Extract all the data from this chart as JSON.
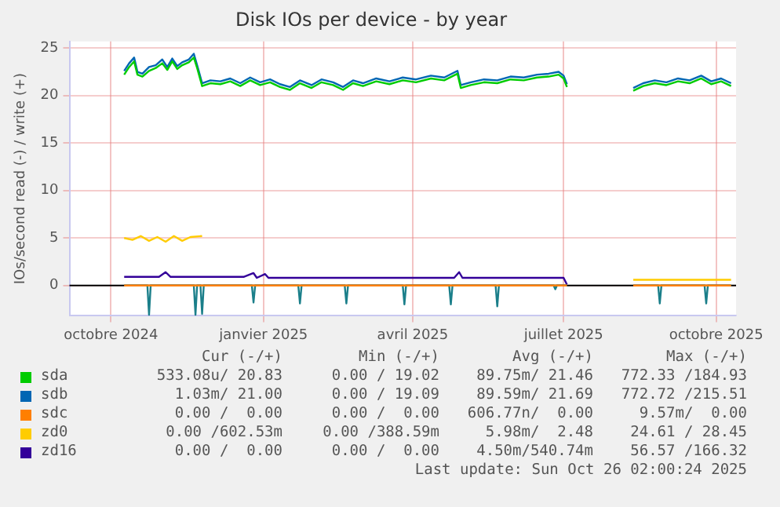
{
  "chart_data": {
    "type": "line",
    "title": "Disk IOs per device - by year",
    "ylabel": "IOs/second read (-) / write (+)",
    "xlim": [
      "2024-09-06",
      "2025-10-13"
    ],
    "xticks": [
      {
        "value": "2024-10-01",
        "label": "octobre 2024"
      },
      {
        "value": "2025-01-01",
        "label": "janvier 2025"
      },
      {
        "value": "2025-04-01",
        "label": "avril 2025"
      },
      {
        "value": "2025-07-01",
        "label": "juillet 2025"
      },
      {
        "value": "2025-10-01",
        "label": "octobre 2025"
      }
    ],
    "ylim": [
      -3.2,
      25.7
    ],
    "yticks": [
      0,
      5,
      10,
      15,
      20,
      25
    ],
    "grid": true,
    "legend": "bottom",
    "ref_lines": [
      {
        "axis": "y",
        "value": 0,
        "color": "#000000"
      }
    ],
    "series": [
      {
        "name": "sda",
        "color": "#00cc00",
        "x": [
          "2024-10-09",
          "2024-10-12",
          "2024-10-15",
          "2024-10-17",
          "2024-10-20",
          "2024-10-24",
          "2024-10-28",
          "2024-11-01",
          "2024-11-04",
          "2024-11-07",
          "2024-11-10",
          "2024-11-13",
          "2024-11-17",
          "2024-11-20",
          "2024-11-22",
          "2024-11-25",
          "2024-11-30",
          "2024-12-06",
          "2024-12-12",
          "2024-12-18",
          "2024-12-24",
          "2024-12-30",
          "2025-01-05",
          "2025-01-11",
          "2025-01-17",
          "2025-01-23",
          "2025-01-30",
          "2025-02-05",
          "2025-02-12",
          "2025-02-18",
          "2025-02-24",
          "2025-03-02",
          "2025-03-10",
          "2025-03-18",
          "2025-03-26",
          "2025-04-03",
          "2025-04-12",
          "2025-04-20",
          "2025-04-28",
          "2025-04-30",
          "2025-05-06",
          "2025-05-14",
          "2025-05-22",
          "2025-05-30",
          "2025-06-07",
          "2025-06-15",
          "2025-06-22",
          "2025-06-28",
          "2025-07-01",
          "2025-07-03",
          "2025-07-20",
          "2025-08-12",
          "2025-08-18",
          "2025-08-25",
          "2025-09-01",
          "2025-09-08",
          "2025-09-15",
          "2025-09-22",
          "2025-09-28",
          "2025-10-04",
          "2025-10-10"
        ],
        "values": [
          22.2,
          23.0,
          23.6,
          22.2,
          22.0,
          22.6,
          22.9,
          23.4,
          22.7,
          23.6,
          22.8,
          23.2,
          23.5,
          24.0,
          22.9,
          21.0,
          21.3,
          21.2,
          21.5,
          21.0,
          21.6,
          21.1,
          21.4,
          20.9,
          20.6,
          21.3,
          20.8,
          21.4,
          21.1,
          20.6,
          21.3,
          21.0,
          21.5,
          21.2,
          21.6,
          21.4,
          21.8,
          21.6,
          22.3,
          20.8,
          21.1,
          21.4,
          21.3,
          21.7,
          21.6,
          21.9,
          22.0,
          22.2,
          21.8,
          20.9,
          null,
          20.5,
          21.0,
          21.3,
          21.1,
          21.5,
          21.3,
          21.8,
          21.2,
          21.5,
          21.0
        ]
      },
      {
        "name": "sdb",
        "color": "#0066b3",
        "x": [
          "2024-10-09",
          "2024-10-12",
          "2024-10-15",
          "2024-10-17",
          "2024-10-20",
          "2024-10-24",
          "2024-10-28",
          "2024-11-01",
          "2024-11-04",
          "2024-11-07",
          "2024-11-10",
          "2024-11-13",
          "2024-11-17",
          "2024-11-20",
          "2024-11-22",
          "2024-11-25",
          "2024-11-30",
          "2024-12-06",
          "2024-12-12",
          "2024-12-18",
          "2024-12-24",
          "2024-12-30",
          "2025-01-05",
          "2025-01-11",
          "2025-01-17",
          "2025-01-23",
          "2025-01-30",
          "2025-02-05",
          "2025-02-12",
          "2025-02-18",
          "2025-02-24",
          "2025-03-02",
          "2025-03-10",
          "2025-03-18",
          "2025-03-26",
          "2025-04-03",
          "2025-04-12",
          "2025-04-20",
          "2025-04-28",
          "2025-04-30",
          "2025-05-06",
          "2025-05-14",
          "2025-05-22",
          "2025-05-30",
          "2025-06-07",
          "2025-06-15",
          "2025-06-22",
          "2025-06-28",
          "2025-07-01",
          "2025-07-03",
          "2025-07-20",
          "2025-08-12",
          "2025-08-18",
          "2025-08-25",
          "2025-09-01",
          "2025-09-08",
          "2025-09-15",
          "2025-09-22",
          "2025-09-28",
          "2025-10-04",
          "2025-10-10"
        ],
        "values": [
          22.6,
          23.4,
          24.0,
          22.5,
          22.3,
          23.0,
          23.2,
          23.8,
          23.0,
          23.9,
          23.1,
          23.5,
          23.8,
          24.4,
          23.2,
          21.3,
          21.6,
          21.5,
          21.8,
          21.3,
          21.9,
          21.4,
          21.7,
          21.2,
          20.9,
          21.6,
          21.1,
          21.7,
          21.4,
          20.9,
          21.6,
          21.3,
          21.8,
          21.5,
          21.9,
          21.7,
          22.1,
          21.9,
          22.6,
          21.1,
          21.4,
          21.7,
          21.6,
          22.0,
          21.9,
          22.2,
          22.3,
          22.5,
          22.1,
          21.2,
          null,
          20.8,
          21.3,
          21.6,
          21.4,
          21.8,
          21.6,
          22.1,
          21.5,
          21.8,
          21.3
        ]
      },
      {
        "name": "sdc",
        "color": "#ff7f00",
        "x": [
          "2024-10-09",
          "2025-07-03",
          "2025-07-20",
          "2025-08-12",
          "2025-10-10"
        ],
        "values": [
          0,
          0,
          null,
          0,
          0
        ]
      },
      {
        "name": "zd0",
        "color": "#ffcc00",
        "x": [
          "2024-10-09",
          "2024-10-14",
          "2024-10-19",
          "2024-10-24",
          "2024-10-29",
          "2024-11-03",
          "2024-11-08",
          "2024-11-13",
          "2024-11-18",
          "2024-11-25",
          "2025-01-01",
          "2025-08-12",
          "2025-10-10"
        ],
        "values": [
          5.0,
          4.8,
          5.2,
          4.7,
          5.1,
          4.6,
          5.2,
          4.7,
          5.1,
          5.2,
          null,
          0.6,
          0.6
        ]
      },
      {
        "name": "zd16",
        "color": "#330099",
        "x": [
          "2024-10-09",
          "2024-10-30",
          "2024-11-03",
          "2024-11-06",
          "2024-12-20",
          "2024-12-26",
          "2024-12-28",
          "2025-01-02",
          "2025-01-04",
          "2025-04-26",
          "2025-04-29",
          "2025-05-01",
          "2025-07-01",
          "2025-07-03"
        ],
        "values": [
          0.9,
          0.9,
          1.4,
          0.9,
          0.9,
          1.3,
          0.8,
          1.2,
          0.8,
          0.8,
          1.4,
          0.8,
          0.8,
          0.1
        ]
      },
      {
        "color": "#1b7f8a",
        "x": [
          "2024-10-09",
          "2024-10-23",
          "2024-10-24",
          "2024-10-25",
          "2024-11-20",
          "2024-11-21",
          "2024-11-22",
          "2024-11-24",
          "2024-11-25",
          "2024-11-26",
          "2024-12-25",
          "2024-12-26",
          "2024-12-27",
          "2025-01-22",
          "2025-01-23",
          "2025-01-24",
          "2025-02-19",
          "2025-02-20",
          "2025-02-21",
          "2025-03-26",
          "2025-03-27",
          "2025-03-28",
          "2025-04-23",
          "2025-04-24",
          "2025-04-25",
          "2025-05-21",
          "2025-05-22",
          "2025-05-23",
          "2025-06-25",
          "2025-06-26",
          "2025-06-27",
          "2025-07-03",
          "2025-07-20",
          "2025-08-12",
          "2025-08-27",
          "2025-08-28",
          "2025-08-29",
          "2025-09-24",
          "2025-09-25",
          "2025-09-26",
          "2025-10-10"
        ],
        "values": [
          0,
          0,
          -3.1,
          0,
          0,
          -3.1,
          0,
          0,
          -3.0,
          0,
          0,
          -1.8,
          0,
          0,
          -1.9,
          0,
          0,
          -1.9,
          0,
          0,
          -2.0,
          0,
          0,
          -2.0,
          0,
          0,
          -2.2,
          0,
          0,
          -0.4,
          0,
          0,
          null,
          0,
          0,
          -1.9,
          0,
          0,
          -1.9,
          0,
          0
        ]
      }
    ],
    "annotations": [
      "Cur (-/+)",
      "Min (-/+)",
      "Avg (-/+)",
      "Max (-/+)",
      "533.08u/ 20.83",
      "0.00 / 19.02",
      "89.75m/ 21.46",
      "772.33 /184.93",
      "1.03m/ 21.00",
      "0.00 / 19.09",
      "89.59m/ 21.69",
      "772.72 /215.51",
      "0.00 /  0.00",
      "0.00 /  0.00",
      "606.77n/  0.00",
      "9.57m/  0.00",
      "0.00 /602.53m",
      "0.00 /388.59m",
      "5.98m/  2.48",
      "24.61 / 28.45",
      "0.00 /  0.00",
      "0.00 /  0.00",
      "4.50m/540.74m",
      "56.57 /166.32",
      "Last update: Sun Oct 26 02:00:24 2025"
    ]
  }
}
